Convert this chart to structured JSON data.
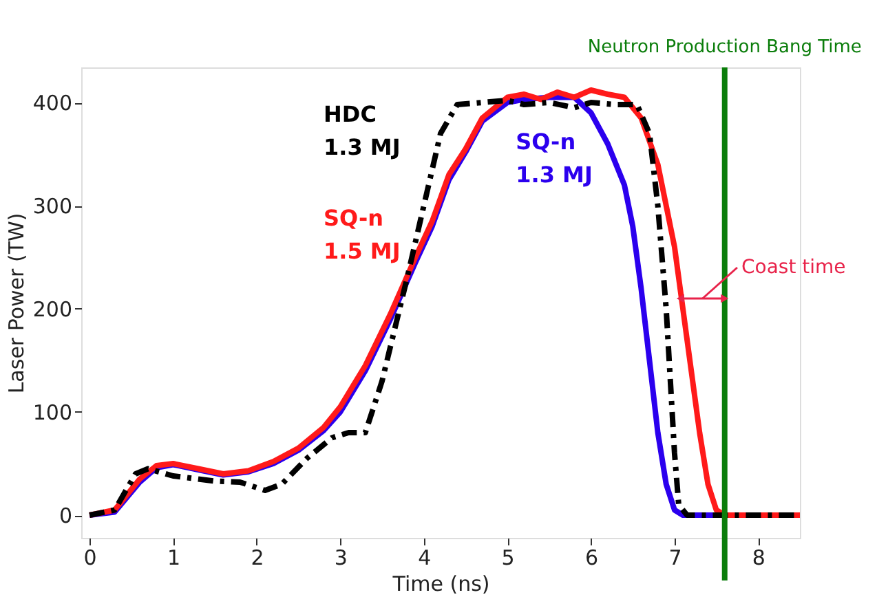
{
  "chart_data": {
    "type": "line",
    "xlabel": "Time (ns)",
    "ylabel": "Laser Power (TW)",
    "xlim": [
      -0.1,
      8.5
    ],
    "ylim": [
      -22,
      434
    ],
    "xticks": [
      0,
      1,
      2,
      3,
      4,
      5,
      6,
      7,
      8
    ],
    "yticks": [
      0,
      100,
      200,
      300,
      400
    ],
    "grid": false,
    "marker": "none",
    "series": [
      {
        "name": "SQ-n 1.3 MJ",
        "color": "#2b00ee",
        "line_style": "solid",
        "x": [
          0,
          0.3,
          0.6,
          0.8,
          1.0,
          1.3,
          1.6,
          1.9,
          2.2,
          2.5,
          2.8,
          3.0,
          3.3,
          3.6,
          3.9,
          4.1,
          4.3,
          4.5,
          4.7,
          5.0,
          5.2,
          5.5,
          5.8,
          6.0,
          6.2,
          6.4,
          6.5,
          6.6,
          6.7,
          6.8,
          6.9,
          7.0,
          7.1,
          8.5
        ],
        "values": [
          0,
          3,
          32,
          46,
          49,
          44,
          39,
          42,
          50,
          63,
          82,
          100,
          140,
          190,
          245,
          280,
          325,
          352,
          382,
          400,
          403,
          405,
          405,
          390,
          360,
          320,
          280,
          220,
          150,
          80,
          30,
          5,
          0,
          0
        ]
      },
      {
        "name": "SQ-n 1.5 MJ",
        "color": "#ff1a1a",
        "line_style": "solid",
        "x": [
          0,
          0.3,
          0.6,
          0.8,
          1.0,
          1.3,
          1.6,
          1.9,
          2.2,
          2.5,
          2.8,
          3.0,
          3.3,
          3.6,
          3.9,
          4.1,
          4.3,
          4.5,
          4.7,
          5.0,
          5.2,
          5.4,
          5.6,
          5.8,
          6.0,
          6.2,
          6.4,
          6.6,
          6.8,
          7.0,
          7.1,
          7.2,
          7.3,
          7.4,
          7.5,
          7.6,
          8.5
        ],
        "values": [
          0,
          5,
          35,
          48,
          50,
          45,
          40,
          43,
          52,
          65,
          85,
          105,
          145,
          195,
          250,
          285,
          330,
          355,
          385,
          405,
          408,
          403,
          410,
          405,
          412,
          408,
          405,
          385,
          340,
          260,
          200,
          140,
          80,
          30,
          5,
          0,
          0
        ]
      },
      {
        "name": "HDC 1.3 MJ",
        "color": "#000000",
        "line_style": "dashed",
        "x": [
          0,
          0.3,
          0.55,
          0.7,
          1.0,
          1.5,
          1.8,
          2.1,
          2.3,
          2.6,
          2.9,
          3.1,
          3.3,
          3.5,
          3.8,
          4.0,
          4.2,
          4.4,
          4.7,
          5.0,
          5.2,
          5.5,
          5.8,
          6.0,
          6.3,
          6.55,
          6.7,
          6.8,
          6.9,
          7.0,
          7.05,
          7.15,
          8.5
        ],
        "values": [
          0,
          5,
          40,
          45,
          38,
          33,
          32,
          24,
          30,
          55,
          75,
          80,
          80,
          130,
          230,
          300,
          370,
          398,
          400,
          402,
          398,
          400,
          395,
          400,
          398,
          398,
          370,
          300,
          200,
          60,
          10,
          0,
          0
        ]
      }
    ],
    "ref_lines": [
      {
        "axis": "x",
        "value": 7.6,
        "label": "Neutron Production Bang Time",
        "color": "#0a7d0a"
      }
    ],
    "annotations": [
      "Coast time"
    ]
  }
}
